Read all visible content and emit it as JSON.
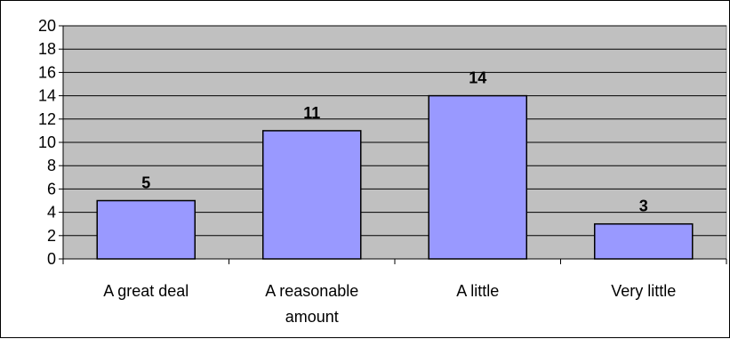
{
  "chart_data": {
    "type": "bar",
    "categories": [
      [
        "A great deal"
      ],
      [
        "A reasonable",
        "amount"
      ],
      [
        "A little"
      ],
      [
        "Very little"
      ]
    ],
    "values": [
      5,
      11,
      14,
      3
    ],
    "ylim": [
      0,
      20
    ],
    "ytick_step": 2,
    "grid": true,
    "legend": "none",
    "colors": {
      "plot_background": "#c0c0c0",
      "bar_fill": "#9999ff",
      "bar_stroke": "#000000",
      "gridline": "#000000"
    }
  }
}
